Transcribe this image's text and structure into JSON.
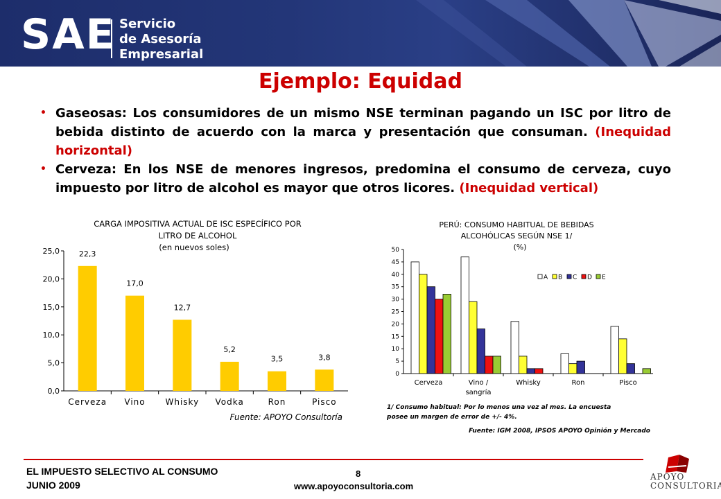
{
  "header": {
    "logo": "SAE",
    "logo_lines": [
      "Servicio",
      "de Asesoría",
      "Empresarial"
    ]
  },
  "title": "Ejemplo: Equidad",
  "bullets": [
    {
      "text": "Gaseosas: Los consumidores de un mismo NSE terminan pagando un ISC por litro de bebida distinto de acuerdo con la marca y presentación que consuman.",
      "highlight": "(Inequidad horizontal)"
    },
    {
      "text": "Cerveza: En los NSE de menores ingresos, predomina el consumo de cerveza, cuyo impuesto por litro de alcohol es mayor que otros licores.",
      "highlight": "(Inequidad vertical)"
    }
  ],
  "colors": {
    "accent": "#cc0000",
    "bar": "#ffcc00",
    "banner": "#233678"
  },
  "chart_data": [
    {
      "type": "bar",
      "title_lines": [
        "CARGA IMPOSITIVA ACTUAL DE ISC ESPECÍFICO POR",
        "LITRO DE ALCOHOL",
        "(en nuevos soles)"
      ],
      "categories": [
        "Cerveza",
        "Vino",
        "Whisky",
        "Vodka",
        "Ron",
        "Pisco"
      ],
      "values": [
        22.3,
        17.0,
        12.7,
        5.2,
        3.5,
        3.8
      ],
      "value_labels": [
        "22,3",
        "17,0",
        "12,7",
        "5,2",
        "3,5",
        "3,8"
      ],
      "ylim": [
        0,
        25
      ],
      "yticks": [
        "0,0",
        "5,0",
        "10,0",
        "15,0",
        "20,0",
        "25,0"
      ],
      "source": "Fuente: APOYO Consultoría"
    },
    {
      "type": "bar",
      "title_lines": [
        "PERÚ: CONSUMO HABITUAL DE BEBIDAS",
        "ALCOHÓLICAS SEGÚN NSE 1/",
        "(%)"
      ],
      "categories": [
        "Cerveza",
        "Vino / sangría",
        "Whisky",
        "Ron",
        "Pisco"
      ],
      "category_lines": [
        [
          "Cerveza"
        ],
        [
          "Vino /",
          "sangría"
        ],
        [
          "Whisky"
        ],
        [
          "Ron"
        ],
        [
          "Pisco"
        ]
      ],
      "series": [
        {
          "name": "A",
          "color": "#ffffff",
          "values": [
            45,
            47,
            21,
            8,
            19
          ]
        },
        {
          "name": "B",
          "color": "#ffff33",
          "values": [
            40,
            29,
            7,
            4,
            14
          ]
        },
        {
          "name": "C",
          "color": "#333399",
          "values": [
            35,
            18,
            2,
            5,
            4
          ]
        },
        {
          "name": "D",
          "color": "#ee1111",
          "values": [
            30,
            7,
            2,
            0,
            0
          ]
        },
        {
          "name": "E",
          "color": "#99cc33",
          "values": [
            32,
            7,
            0,
            0,
            2
          ]
        }
      ],
      "ylim": [
        0,
        50
      ],
      "yticks": [
        "0",
        "5",
        "10",
        "15",
        "20",
        "25",
        "30",
        "35",
        "40",
        "45",
        "50"
      ],
      "legend_position": "top-right",
      "note_lines": [
        "1/ Consumo habitual: Por lo menos una vez al mes. La encuesta",
        "posee un margen de error de +/- 4%."
      ],
      "source": "Fuente: IGM 2008, IPSOS APOYO Opinión y Mercado"
    }
  ],
  "footer": {
    "line1": "EL IMPUESTO SELECTIVO AL CONSUMO",
    "line2": "JUNIO 2009",
    "page": "8",
    "url": "www.apoyoconsultoria.com",
    "brand_lines": [
      "APOYO",
      "CONSULTORIA"
    ]
  }
}
